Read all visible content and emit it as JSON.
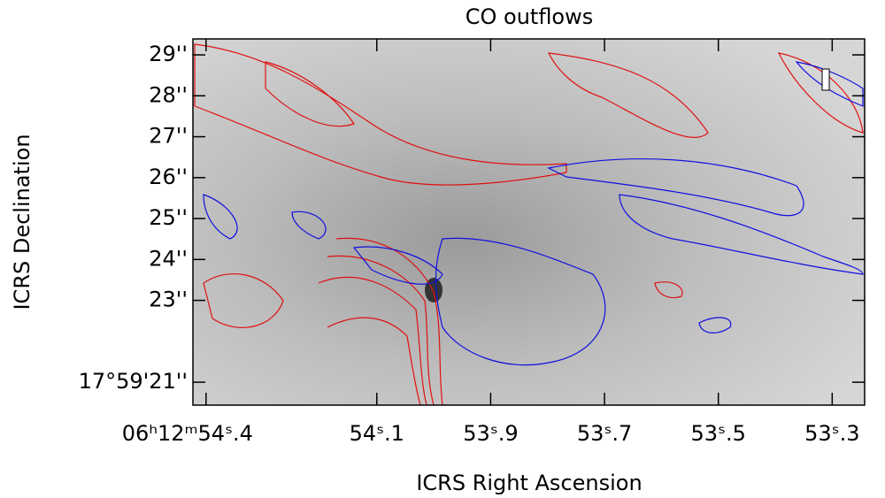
{
  "chart_data": {
    "type": "image",
    "title": "CO outflows",
    "xlabel": "ICRS Right Ascension",
    "ylabel": "ICRS Declination",
    "xlim": [
      54.423,
      53.243
    ],
    "ylim": [
      20.44,
      29.39
    ],
    "xticks": [
      {
        "value": 54.4,
        "label": "06ʰ12ᵐ54ˢ.4"
      },
      {
        "value": 54.1,
        "label": "54ˢ.1"
      },
      {
        "value": 53.9,
        "label": "53ˢ.9"
      },
      {
        "value": 53.7,
        "label": "53ˢ.7"
      },
      {
        "value": 53.5,
        "label": "53ˢ.5"
      },
      {
        "value": 53.3,
        "label": "53ˢ.3"
      }
    ],
    "yticks": [
      {
        "value": 21,
        "label": "17°59'21''"
      },
      {
        "value": 23,
        "label": "23''"
      },
      {
        "value": 24,
        "label": "24''"
      },
      {
        "value": 25,
        "label": "25''"
      },
      {
        "value": 26,
        "label": "26''"
      },
      {
        "value": 27,
        "label": "27''"
      },
      {
        "value": 28,
        "label": "28''"
      },
      {
        "value": 29,
        "label": "29''"
      }
    ]
  }
}
